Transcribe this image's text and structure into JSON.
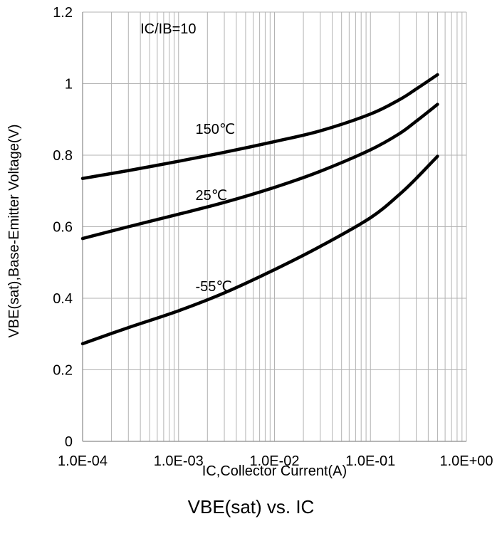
{
  "chart_data": {
    "type": "line",
    "title": "VBE(sat) vs. IC",
    "xlabel": "IC,Collector Current(A)",
    "ylabel": "VBE(sat),Base-Emitter Voltage(V)",
    "x_scale": "log",
    "xlim": [
      0.0001,
      1
    ],
    "ylim": [
      0,
      1.2
    ],
    "x_ticks": [
      {
        "value": 0.0001,
        "label": "1.0E-04"
      },
      {
        "value": 0.001,
        "label": "1.0E-03"
      },
      {
        "value": 0.01,
        "label": "1.0E-02"
      },
      {
        "value": 0.1,
        "label": "1.0E-01"
      },
      {
        "value": 1,
        "label": "1.0E+00"
      }
    ],
    "y_ticks": [
      {
        "value": 0,
        "label": "0"
      },
      {
        "value": 0.2,
        "label": "0.2"
      },
      {
        "value": 0.4,
        "label": "0.4"
      },
      {
        "value": 0.6,
        "label": "0.6"
      },
      {
        "value": 0.8,
        "label": "0.8"
      },
      {
        "value": 1.0,
        "label": "1"
      },
      {
        "value": 1.2,
        "label": "1.2"
      }
    ],
    "grid": true,
    "minor_grid_x": true,
    "line_color": "#000000",
    "grid_color": "#b3b3b3",
    "annotations": [
      {
        "text": "IC/IB=10",
        "x": 0.0004,
        "y": 1.14
      },
      {
        "text": "150℃",
        "x": 0.0015,
        "y": 0.86
      },
      {
        "text": "25℃",
        "x": 0.0015,
        "y": 0.675
      },
      {
        "text": "-55℃",
        "x": 0.0015,
        "y": 0.42
      }
    ],
    "series": [
      {
        "name": "150℃",
        "x": [
          0.0001,
          0.0003,
          0.001,
          0.003,
          0.01,
          0.03,
          0.1,
          0.2,
          0.3,
          0.5
        ],
        "y": [
          0.735,
          0.757,
          0.783,
          0.808,
          0.838,
          0.868,
          0.915,
          0.955,
          0.985,
          1.025
        ]
      },
      {
        "name": "25℃",
        "x": [
          0.0001,
          0.0003,
          0.001,
          0.003,
          0.01,
          0.03,
          0.1,
          0.2,
          0.3,
          0.5
        ],
        "y": [
          0.567,
          0.6,
          0.635,
          0.668,
          0.71,
          0.755,
          0.815,
          0.86,
          0.895,
          0.942
        ]
      },
      {
        "name": "-55℃",
        "x": [
          0.0001,
          0.0003,
          0.001,
          0.003,
          0.01,
          0.03,
          0.1,
          0.2,
          0.3,
          0.5
        ],
        "y": [
          0.273,
          0.318,
          0.365,
          0.415,
          0.48,
          0.545,
          0.625,
          0.69,
          0.735,
          0.797
        ]
      }
    ]
  }
}
